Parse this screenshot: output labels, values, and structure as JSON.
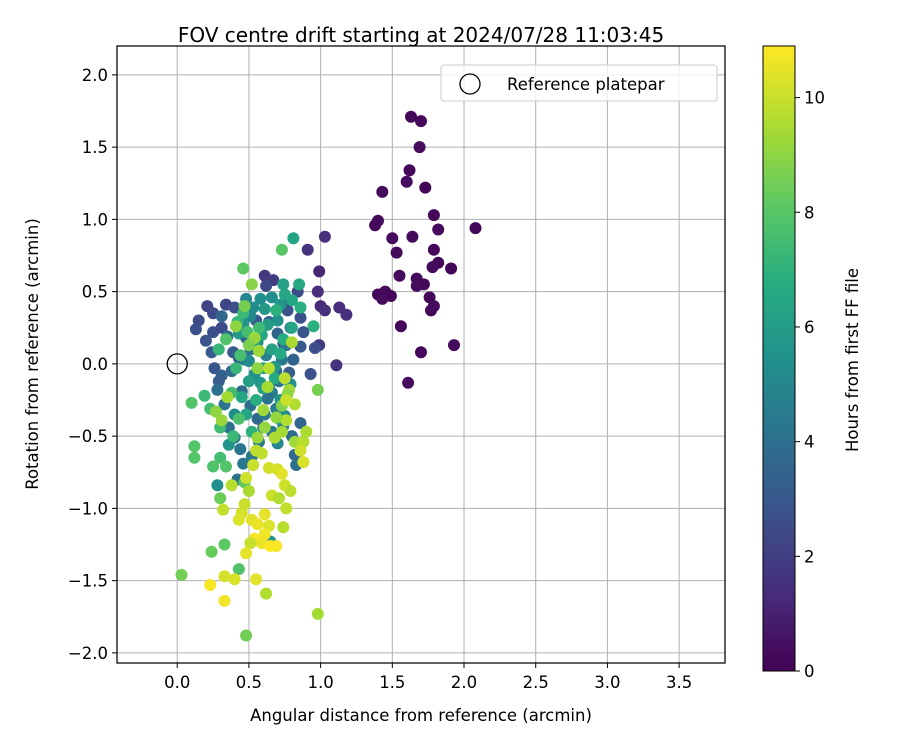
{
  "chart_data": {
    "type": "scatter",
    "title": "FOV centre drift starting at 2024/07/28 11:03:45",
    "xlabel": "Angular distance from reference (arcmin)",
    "ylabel": "Rotation from reference (arcmin)",
    "xlim": [
      -0.42,
      3.82
    ],
    "ylim": [
      -2.07,
      2.2
    ],
    "xticks": [
      "0.0",
      "0.5",
      "1.0",
      "1.5",
      "2.0",
      "2.5",
      "3.0",
      "3.5"
    ],
    "xtick_values": [
      0,
      0.5,
      1,
      1.5,
      2,
      2.5,
      3,
      3.5
    ],
    "yticks": [
      "−2.0",
      "−1.5",
      "−1.0",
      "−0.5",
      "0.0",
      "0.5",
      "1.0",
      "1.5",
      "2.0"
    ],
    "ytick_values": [
      -2,
      -1.5,
      -1,
      -0.5,
      0,
      0.5,
      1,
      1.5,
      2
    ],
    "grid": true,
    "legend": {
      "placement": "upper-right",
      "entries": [
        "Reference platepar"
      ]
    },
    "reference_point": {
      "x": 0.0,
      "y": 0.0,
      "label": "Reference platepar"
    },
    "colorbar": {
      "label": "Hours from first FF file",
      "colormap": "viridis",
      "min": 0,
      "max": 10.9,
      "ticks": [
        "0",
        "2",
        "4",
        "6",
        "8",
        "10"
      ],
      "tick_values": [
        0,
        2,
        4,
        6,
        8,
        10
      ]
    },
    "point_format": "[x, y, hours]",
    "points": [
      [
        1.63,
        1.71,
        0.2
      ],
      [
        1.7,
        1.68,
        0.2
      ],
      [
        1.69,
        1.5,
        0.3
      ],
      [
        1.62,
        1.34,
        0.2
      ],
      [
        1.6,
        1.26,
        0.3
      ],
      [
        1.73,
        1.22,
        0.2
      ],
      [
        1.43,
        1.19,
        0.3
      ],
      [
        1.79,
        1.03,
        0.2
      ],
      [
        1.4,
        0.99,
        0.3
      ],
      [
        1.38,
        0.96,
        0.2
      ],
      [
        1.82,
        0.93,
        0.3
      ],
      [
        2.08,
        0.94,
        0.2
      ],
      [
        1.5,
        0.87,
        0.3
      ],
      [
        1.64,
        0.88,
        0.3
      ],
      [
        1.79,
        0.79,
        0.2
      ],
      [
        1.53,
        0.77,
        0.3
      ],
      [
        1.82,
        0.7,
        0.2
      ],
      [
        1.78,
        0.67,
        0.3
      ],
      [
        1.91,
        0.66,
        0.2
      ],
      [
        1.55,
        0.61,
        0.3
      ],
      [
        1.67,
        0.59,
        0.3
      ],
      [
        1.72,
        0.55,
        0.2
      ],
      [
        1.67,
        0.54,
        0.3
      ],
      [
        1.76,
        0.46,
        0.2
      ],
      [
        1.45,
        0.5,
        0.3
      ],
      [
        1.4,
        0.48,
        0.2
      ],
      [
        1.49,
        0.47,
        0.2
      ],
      [
        1.43,
        0.45,
        0.3
      ],
      [
        1.77,
        0.37,
        0.2
      ],
      [
        1.79,
        0.4,
        0.3
      ],
      [
        1.56,
        0.26,
        0.2
      ],
      [
        1.93,
        0.13,
        0.3
      ],
      [
        1.7,
        0.08,
        0.2
      ],
      [
        1.61,
        -0.13,
        0.3
      ],
      [
        1.03,
        0.88,
        1.5
      ],
      [
        0.91,
        0.79,
        1.6
      ],
      [
        0.61,
        0.61,
        1.8
      ],
      [
        0.67,
        0.58,
        1.9
      ],
      [
        0.99,
        0.64,
        1.2
      ],
      [
        0.98,
        0.5,
        1.4
      ],
      [
        1.0,
        0.4,
        1.3
      ],
      [
        1.03,
        0.37,
        1.5
      ],
      [
        1.13,
        0.39,
        1.4
      ],
      [
        1.18,
        0.34,
        1.5
      ],
      [
        1.11,
        -0.01,
        1.6
      ],
      [
        0.99,
        0.13,
        1.9
      ],
      [
        0.21,
        0.4,
        2.2
      ],
      [
        0.25,
        0.35,
        2.4
      ],
      [
        0.34,
        0.41,
        2.3
      ],
      [
        0.15,
        0.3,
        2.5
      ],
      [
        0.13,
        0.24,
        2.6
      ],
      [
        0.2,
        0.16,
        2.8
      ],
      [
        0.25,
        0.22,
        2.7
      ],
      [
        0.31,
        0.25,
        2.5
      ],
      [
        0.4,
        0.39,
        2.6
      ],
      [
        0.62,
        0.54,
        2.4
      ],
      [
        0.76,
        0.44,
        2.6
      ],
      [
        0.77,
        0.37,
        2.8
      ],
      [
        0.84,
        0.5,
        2.5
      ],
      [
        0.86,
        0.32,
        2.7
      ],
      [
        0.88,
        0.22,
        2.9
      ],
      [
        0.96,
        0.11,
        2.6
      ],
      [
        0.93,
        -0.07,
        2.8
      ],
      [
        0.86,
        0.12,
        3.0
      ],
      [
        0.24,
        0.08,
        3.1
      ],
      [
        0.26,
        -0.03,
        3.0
      ],
      [
        0.29,
        -0.12,
        3.2
      ],
      [
        0.31,
        -0.08,
        3.3
      ],
      [
        0.39,
        0.08,
        3.1
      ],
      [
        0.43,
        0.04,
        3.4
      ],
      [
        0.48,
        0.18,
        3.2
      ],
      [
        0.55,
        0.3,
        3.0
      ],
      [
        0.58,
        0.24,
        3.2
      ],
      [
        0.64,
        0.29,
        3.3
      ],
      [
        0.7,
        0.21,
        3.5
      ],
      [
        0.74,
        0.14,
        3.4
      ],
      [
        0.69,
        -0.05,
        3.6
      ],
      [
        0.78,
        -0.06,
        3.3
      ],
      [
        0.81,
        0.03,
        3.5
      ],
      [
        0.86,
        -0.41,
        3.6
      ],
      [
        0.8,
        -0.5,
        3.8
      ],
      [
        0.82,
        -0.63,
        3.7
      ],
      [
        0.83,
        -0.7,
        3.9
      ],
      [
        0.31,
        0.33,
        3.6
      ],
      [
        0.35,
        0.19,
        3.8
      ],
      [
        0.38,
        -0.05,
        3.7
      ],
      [
        0.45,
        -0.19,
        3.8
      ],
      [
        0.51,
        -0.29,
        3.9
      ],
      [
        0.56,
        -0.38,
        3.6
      ],
      [
        0.6,
        -0.44,
        3.7
      ],
      [
        0.28,
        -0.18,
        4.0
      ],
      [
        0.33,
        -0.28,
        4.2
      ],
      [
        0.36,
        -0.44,
        4.1
      ],
      [
        0.4,
        -0.51,
        4.3
      ],
      [
        0.44,
        -0.59,
        4.2
      ],
      [
        0.46,
        -0.69,
        4.4
      ],
      [
        0.42,
        -0.8,
        4.1
      ],
      [
        0.52,
        -0.64,
        4.3
      ],
      [
        0.57,
        -0.54,
        4.5
      ],
      [
        0.61,
        -0.35,
        4.4
      ],
      [
        0.66,
        -0.2,
        4.6
      ],
      [
        0.69,
        -0.31,
        4.5
      ],
      [
        0.71,
        -0.12,
        4.3
      ],
      [
        0.73,
        0.03,
        4.4
      ],
      [
        0.47,
        0.03,
        4.5
      ],
      [
        0.51,
        0.1,
        4.2
      ],
      [
        0.56,
        0.15,
        4.6
      ],
      [
        0.62,
        0.06,
        4.7
      ],
      [
        0.65,
        -0.03,
        4.8
      ],
      [
        0.76,
        0.13,
        4.2
      ],
      [
        0.79,
        0.25,
        4.4
      ],
      [
        0.63,
        -0.24,
        4.1
      ],
      [
        0.74,
        -0.43,
        4.3
      ],
      [
        0.66,
        -0.47,
        4.5
      ],
      [
        0.48,
        0.45,
        5.0
      ],
      [
        0.53,
        0.39,
        5.2
      ],
      [
        0.58,
        0.45,
        5.4
      ],
      [
        0.66,
        0.46,
        5.3
      ],
      [
        0.72,
        0.41,
        5.6
      ],
      [
        0.7,
        0.3,
        5.5
      ],
      [
        0.61,
        0.38,
        5.8
      ],
      [
        0.51,
        0.33,
        5.1
      ],
      [
        0.46,
        0.28,
        5.5
      ],
      [
        0.43,
        0.21,
        5.9
      ],
      [
        0.5,
        0.02,
        5.2
      ],
      [
        0.54,
        -0.07,
        5.4
      ],
      [
        0.58,
        -0.13,
        5.7
      ],
      [
        0.64,
        -0.16,
        5.3
      ],
      [
        0.68,
        -0.02,
        5.8
      ],
      [
        0.72,
        -0.25,
        5.6
      ],
      [
        0.75,
        -0.36,
        5.2
      ],
      [
        0.79,
        -0.14,
        5.5
      ],
      [
        0.7,
        -0.55,
        5.0
      ],
      [
        0.65,
        -1.23,
        5.6
      ],
      [
        0.28,
        -0.84,
        5.4
      ],
      [
        0.36,
        -0.56,
        5.7
      ],
      [
        0.4,
        -0.35,
        5.3
      ],
      [
        0.55,
        0.14,
        5.9
      ],
      [
        0.81,
        0.87,
        6.3
      ],
      [
        0.74,
        0.55,
        6.2
      ],
      [
        0.8,
        0.44,
        6.5
      ],
      [
        0.86,
        0.39,
        6.8
      ],
      [
        0.85,
        0.55,
        6.6
      ],
      [
        0.75,
        0.48,
        6.4
      ],
      [
        0.69,
        0.37,
        6.9
      ],
      [
        0.63,
        0.27,
        6.1
      ],
      [
        0.59,
        0.2,
        6.5
      ],
      [
        0.57,
        0.09,
        6.7
      ],
      [
        0.6,
        -0.03,
        6.3
      ],
      [
        0.66,
        0.1,
        6.2
      ],
      [
        0.72,
        0.07,
        6.6
      ],
      [
        0.74,
        0.17,
        6.8
      ],
      [
        0.8,
        0.25,
        6.4
      ],
      [
        0.95,
        0.26,
        6.9
      ],
      [
        0.5,
        -0.12,
        6.1
      ],
      [
        0.45,
        -0.23,
        6.5
      ],
      [
        0.55,
        -0.25,
        6.8
      ],
      [
        0.6,
        -0.17,
        6.2
      ],
      [
        0.68,
        -0.1,
        6.6
      ],
      [
        0.71,
        -0.38,
        6.3
      ],
      [
        0.52,
        -0.47,
        6.9
      ],
      [
        0.48,
        -0.35,
        6.4
      ],
      [
        0.42,
        0.29,
        7.1
      ],
      [
        0.46,
        0.35,
        7.3
      ],
      [
        0.49,
        0.22,
        7.6
      ],
      [
        0.53,
        0.17,
        7.8
      ],
      [
        0.57,
        0.25,
        7.4
      ],
      [
        0.41,
        -0.03,
        7.2
      ],
      [
        0.38,
        -0.2,
        7.5
      ],
      [
        0.43,
        -0.38,
        7.7
      ],
      [
        0.39,
        -0.5,
        7.3
      ],
      [
        0.3,
        -0.65,
        7.6
      ],
      [
        0.34,
        -0.71,
        7.9
      ],
      [
        0.25,
        -0.71,
        7.8
      ],
      [
        0.23,
        -0.31,
        7.5
      ],
      [
        0.19,
        -0.22,
        7.3
      ],
      [
        0.1,
        -0.27,
        7.9
      ],
      [
        0.12,
        -0.57,
        7.9
      ],
      [
        0.12,
        -0.65,
        7.9
      ],
      [
        0.3,
        -0.44,
        7.4
      ],
      [
        0.44,
        0.06,
        7.6
      ],
      [
        0.29,
        0.1,
        7.2
      ],
      [
        0.34,
        0.17,
        7.8
      ],
      [
        0.46,
        0.66,
        8.2
      ],
      [
        0.73,
        0.79,
        8.0
      ],
      [
        0.24,
        -1.3,
        8.3
      ],
      [
        0.33,
        -1.25,
        8.1
      ],
      [
        0.43,
        -1.42,
        7.8
      ],
      [
        0.03,
        -1.46,
        8.5
      ],
      [
        0.48,
        -1.88,
        8.5
      ],
      [
        0.3,
        -0.93,
        8.4
      ],
      [
        0.98,
        -0.18,
        8.6
      ],
      [
        0.47,
        -0.82,
        8.2
      ],
      [
        0.47,
        0.4,
        8.6
      ],
      [
        0.52,
        0.55,
        8.9
      ],
      [
        0.41,
        0.26,
        9.0
      ],
      [
        0.54,
        0.18,
        9.2
      ],
      [
        0.57,
        0.09,
        9.3
      ],
      [
        0.5,
        0.13,
        8.7
      ],
      [
        0.56,
        -0.03,
        9.0
      ],
      [
        0.63,
        -0.16,
        9.4
      ],
      [
        0.6,
        -0.32,
        9.3
      ],
      [
        0.61,
        -0.44,
        9.1
      ],
      [
        0.56,
        -0.51,
        9.2
      ],
      [
        0.68,
        -0.51,
        9.5
      ],
      [
        0.73,
        -0.47,
        9.4
      ],
      [
        0.76,
        -0.39,
        9.6
      ],
      [
        0.69,
        -0.37,
        9.1
      ],
      [
        0.82,
        -0.54,
        9.3
      ],
      [
        0.88,
        -0.54,
        9.7
      ],
      [
        0.9,
        -0.47,
        9.5
      ],
      [
        0.82,
        -0.28,
        9.6
      ],
      [
        0.78,
        -0.18,
        9.4
      ],
      [
        0.75,
        -0.1,
        9.8
      ],
      [
        0.64,
        -0.03,
        9.7
      ],
      [
        0.59,
        -0.62,
        9.9
      ],
      [
        0.55,
        -0.6,
        9.8
      ],
      [
        0.53,
        -0.7,
        10.0
      ],
      [
        0.48,
        -0.79,
        10.1
      ],
      [
        0.5,
        -0.88,
        9.5
      ],
      [
        0.38,
        -0.84,
        9.7
      ],
      [
        0.32,
        -1.01,
        9.9
      ],
      [
        0.45,
        -1.03,
        10.2
      ],
      [
        0.43,
        -1.08,
        10.3
      ],
      [
        0.47,
        -0.97,
        10.0
      ],
      [
        0.52,
        -1.08,
        10.4
      ],
      [
        0.56,
        -1.11,
        10.6
      ],
      [
        0.61,
        -1.04,
        10.5
      ],
      [
        0.64,
        -1.12,
        10.3
      ],
      [
        0.61,
        -1.18,
        10.7
      ],
      [
        0.54,
        -1.21,
        10.8
      ],
      [
        0.59,
        -1.24,
        10.6
      ],
      [
        0.65,
        -1.26,
        10.9
      ],
      [
        0.69,
        -1.26,
        10.8
      ],
      [
        0.66,
        -0.91,
        10.0
      ],
      [
        0.71,
        -0.93,
        9.6
      ],
      [
        0.7,
        -0.73,
        10.2
      ],
      [
        0.73,
        -0.76,
        10.4
      ],
      [
        0.75,
        -0.84,
        10.1
      ],
      [
        0.79,
        -0.88,
        9.8
      ],
      [
        0.74,
        -1.13,
        9.7
      ],
      [
        0.76,
        -1.0,
        9.9
      ],
      [
        0.86,
        -0.6,
        10.1
      ],
      [
        0.88,
        -0.68,
        10.3
      ],
      [
        0.64,
        -0.72,
        10.2
      ],
      [
        0.51,
        -1.24,
        10.0
      ],
      [
        0.55,
        -1.49,
        10.4
      ],
      [
        0.4,
        -1.49,
        10.3
      ],
      [
        0.33,
        -1.47,
        10.2
      ],
      [
        0.48,
        -1.31,
        10.5
      ],
      [
        0.33,
        -1.64,
        10.7
      ],
      [
        0.23,
        -1.53,
        10.8
      ],
      [
        0.62,
        -1.59,
        9.6
      ],
      [
        0.98,
        -1.73,
        9.4
      ],
      [
        0.31,
        -0.39,
        9.2
      ],
      [
        0.27,
        -0.33,
        9.0
      ],
      [
        0.35,
        -0.23,
        9.4
      ],
      [
        0.73,
        -0.29,
        8.8
      ],
      [
        0.77,
        -0.21,
        9.0
      ],
      [
        0.8,
        0.15,
        9.5
      ],
      [
        0.76,
        -0.25,
        10.0
      ]
    ]
  }
}
